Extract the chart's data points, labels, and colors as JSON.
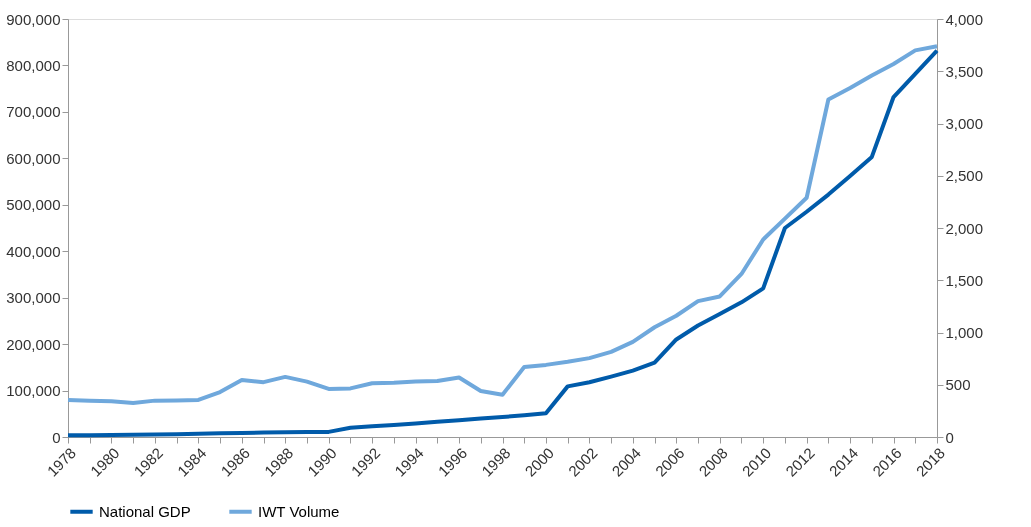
{
  "chart_data": {
    "type": "line",
    "x": [
      1978,
      1979,
      1980,
      1981,
      1982,
      1983,
      1984,
      1985,
      1986,
      1987,
      1988,
      1989,
      1990,
      1991,
      1992,
      1993,
      1994,
      1995,
      1996,
      1997,
      1998,
      1999,
      2000,
      2001,
      2002,
      2003,
      2004,
      2005,
      2006,
      2007,
      2008,
      2009,
      2010,
      2011,
      2012,
      2013,
      2014,
      2015,
      2016,
      2017,
      2018
    ],
    "series": [
      {
        "name": "National GDP",
        "color": "#005baa",
        "values": [
          3600,
          4000,
          4500,
          4900,
          5300,
          6000,
          7000,
          8000,
          8500,
          9500,
          10000,
          10500,
          11000,
          20000,
          23000,
          26000,
          29000,
          33000,
          36000,
          40000,
          43000,
          47000,
          51000,
          109000,
          118000,
          130000,
          143000,
          160000,
          210000,
          240000,
          265000,
          290000,
          320000,
          450000,
          485000,
          522000,
          562000,
          603000,
          732000,
          782000,
          832000
        ]
      },
      {
        "name": "IWT Volume",
        "color": "#6fa8dc",
        "axis": "y2",
        "values": [
          355,
          348,
          342,
          325,
          348,
          350,
          355,
          430,
          545,
          525,
          575,
          530,
          460,
          465,
          515,
          520,
          530,
          535,
          570,
          440,
          405,
          670,
          690,
          720,
          755,
          815,
          910,
          1050,
          1160,
          1300,
          1345,
          1560,
          1890,
          2090,
          2290,
          3230,
          3340,
          3460,
          3570,
          3700,
          3740
        ]
      }
    ],
    "xlim": [
      1978,
      2018
    ],
    "xticks": [
      1978,
      {
        "value": 1979,
        "label": null
      },
      1980,
      {
        "value": 1981,
        "label": null
      },
      1982,
      {
        "value": 1983,
        "label": null
      },
      1984,
      {
        "value": 1985,
        "label": null
      },
      1986,
      {
        "value": 1987,
        "label": null
      },
      1988,
      {
        "value": 1989,
        "label": null
      },
      1990,
      {
        "value": 1991,
        "label": null
      },
      1992,
      {
        "value": 1993,
        "label": null
      },
      1994,
      {
        "value": 1995,
        "label": null
      },
      1996,
      {
        "value": 1997,
        "label": null
      },
      1998,
      {
        "value": 1999,
        "label": null
      },
      2000,
      {
        "value": 2001,
        "label": null
      },
      2002,
      {
        "value": 2003,
        "label": null
      },
      2004,
      {
        "value": 2005,
        "label": null
      },
      2006,
      {
        "value": 2007,
        "label": null
      },
      2008,
      {
        "value": 2009,
        "label": null
      },
      2010,
      {
        "value": 2011,
        "label": null
      },
      2012,
      {
        "value": 2013,
        "label": null
      },
      2014,
      {
        "value": 2015,
        "label": null
      },
      2016,
      {
        "value": 2017,
        "label": null
      },
      2018
    ],
    "ylim": [
      0,
      900000
    ],
    "yticks": [
      {
        "value": 0,
        "label": "0"
      },
      {
        "value": 100000,
        "label": "100,000"
      },
      {
        "value": 200000,
        "label": "200,000"
      },
      {
        "value": 300000,
        "label": "300,000"
      },
      {
        "value": 400000,
        "label": "400,000"
      },
      {
        "value": 500000,
        "label": "500,000"
      },
      {
        "value": 600000,
        "label": "600,000"
      },
      {
        "value": 700000,
        "label": "700,000"
      },
      {
        "value": 800000,
        "label": "800,000"
      },
      {
        "value": 900000,
        "label": "900,000"
      }
    ],
    "y2lim": [
      0,
      4000
    ],
    "y2ticks": [
      0,
      500,
      {
        "value": 1000,
        "label": "1,000"
      },
      {
        "value": 1500,
        "label": "1,500"
      },
      {
        "value": 2000,
        "label": "2,000"
      },
      {
        "value": 2500,
        "label": "2,500"
      },
      {
        "value": 3000,
        "label": "3,000"
      },
      {
        "value": 3500,
        "label": "3,500"
      },
      {
        "value": 4000,
        "label": "4,000"
      }
    ],
    "grid": false,
    "legend": "bottom",
    "marker": "none",
    "line_style": "solid"
  }
}
